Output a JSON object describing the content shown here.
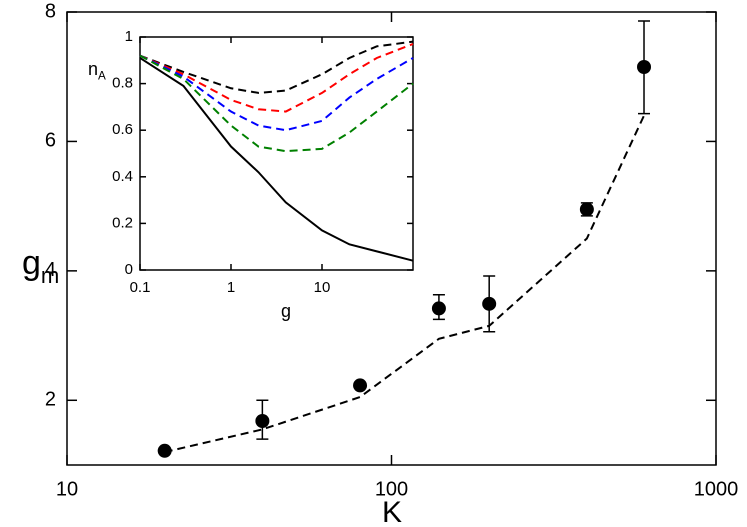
{
  "chart_data": [
    {
      "type": "scatter",
      "xlabel": "K",
      "ylabel": "g",
      "ylabel_sub": "m",
      "log_x": true,
      "xlim": [
        10,
        1000
      ],
      "xticks": [
        10,
        100,
        1000
      ],
      "ylim": [
        1,
        8
      ],
      "yticks": [
        2,
        4,
        6,
        8
      ],
      "series": [
        {
          "type": "scatter",
          "color": "#000000",
          "x": [
            20,
            40,
            80,
            140,
            200,
            400,
            600
          ],
          "values": [
            1.22,
            1.68,
            2.23,
            3.42,
            3.49,
            4.95,
            7.15
          ],
          "err_low": [
            null,
            1.4,
            null,
            3.25,
            3.06,
            4.85,
            6.43
          ],
          "err_high": [
            null,
            2.0,
            null,
            3.63,
            3.92,
            5.05,
            7.86
          ]
        },
        {
          "type": "line",
          "dashed": true,
          "color": "#000000",
          "x": [
            20,
            40,
            80,
            140,
            200,
            400,
            600
          ],
          "values": [
            1.2,
            1.55,
            2.05,
            2.95,
            3.15,
            4.5,
            6.4
          ]
        }
      ]
    },
    {
      "type": "line",
      "xlabel": "g",
      "ylabel": "n",
      "ylabel_sub": "A",
      "log_x": true,
      "xlim": [
        0.1,
        100
      ],
      "xticks": [
        0.1,
        1,
        10
      ],
      "ylim": [
        0,
        1
      ],
      "yticks": [
        0,
        0.2,
        0.4,
        0.6,
        0.8,
        1
      ],
      "x": [
        0.1,
        0.3,
        1,
        2,
        4,
        10,
        20,
        40,
        100
      ],
      "series": [
        {
          "color": "#000000",
          "dashed": false,
          "values": [
            0.91,
            0.79,
            0.53,
            0.42,
            0.29,
            0.17,
            0.11,
            0.08,
            0.04
          ]
        },
        {
          "color": "#000000",
          "dashed": true,
          "values": [
            0.92,
            0.85,
            0.78,
            0.76,
            0.77,
            0.84,
            0.91,
            0.96,
            0.98
          ]
        },
        {
          "color": "#ff0000",
          "dashed": true,
          "values": [
            0.92,
            0.84,
            0.73,
            0.69,
            0.68,
            0.76,
            0.84,
            0.91,
            0.97
          ]
        },
        {
          "color": "#0000ff",
          "dashed": true,
          "values": [
            0.92,
            0.83,
            0.68,
            0.62,
            0.6,
            0.64,
            0.74,
            0.82,
            0.91
          ]
        },
        {
          "color": "#008000",
          "dashed": true,
          "values": [
            0.92,
            0.82,
            0.62,
            0.53,
            0.51,
            0.52,
            0.59,
            0.68,
            0.8
          ]
        }
      ]
    }
  ]
}
